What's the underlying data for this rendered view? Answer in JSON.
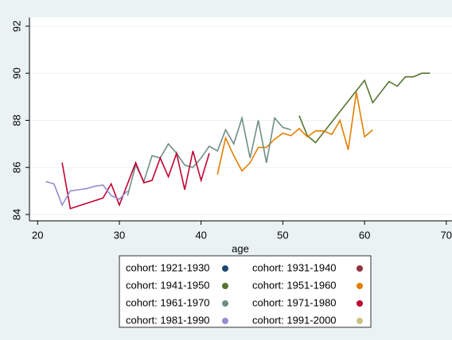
{
  "chart_data": {
    "type": "line",
    "x_label": "age",
    "xlim": [
      19,
      70.7
    ],
    "xticks": [
      20,
      30,
      40,
      50,
      60,
      70
    ],
    "ylim": [
      83.73,
      92.37
    ],
    "yticks": [
      84,
      86,
      88,
      90,
      92
    ],
    "grid": true,
    "series": [
      {
        "name": "cohort: 1921-1930",
        "color": "#1a476f",
        "x": [],
        "values": []
      },
      {
        "name": "cohort: 1931-1940",
        "color": "#90353b",
        "x": [],
        "values": []
      },
      {
        "name": "cohort: 1941-1950",
        "color": "#55752f",
        "x": [
          52,
          53,
          54,
          60,
          61,
          62,
          63,
          64,
          65,
          66,
          67,
          68
        ],
        "values": [
          88.2,
          87.35,
          87.05,
          89.7,
          88.75,
          89.2,
          89.65,
          89.45,
          89.85,
          89.85,
          90.0,
          90.0
        ]
      },
      {
        "name": "cohort: 1951-1960",
        "color": "#e37e00",
        "x": [
          42,
          43,
          44,
          45,
          46,
          47,
          48,
          49,
          50,
          51,
          52,
          53,
          54,
          55,
          56,
          57,
          58,
          59,
          60,
          61
        ],
        "values": [
          85.7,
          87.25,
          86.5,
          85.85,
          86.2,
          86.85,
          86.85,
          87.2,
          87.45,
          87.35,
          87.65,
          87.3,
          87.55,
          87.55,
          87.4,
          88.0,
          86.75,
          89.2,
          87.3,
          87.6
        ]
      },
      {
        "name": "cohort: 1961-1970",
        "color": "#6e8e84",
        "x": [
          31,
          32,
          33,
          34,
          35,
          36,
          37,
          38,
          39,
          40,
          41,
          42,
          43,
          44,
          45,
          46,
          47,
          48,
          49,
          50,
          51
        ],
        "values": [
          84.8,
          86.1,
          85.4,
          86.5,
          86.4,
          87.0,
          86.6,
          86.1,
          86.0,
          86.4,
          86.9,
          86.7,
          87.6,
          87.0,
          88.1,
          86.4,
          88.0,
          86.2,
          88.1,
          87.7,
          87.6
        ]
      },
      {
        "name": "cohort: 1971-1980",
        "color": "#c10534",
        "x": [
          23,
          24,
          28,
          29,
          30,
          32,
          33,
          34,
          35,
          36,
          37,
          38,
          39,
          40,
          41
        ],
        "values": [
          86.2,
          84.25,
          84.7,
          85.3,
          84.4,
          86.2,
          85.35,
          85.45,
          86.4,
          85.6,
          86.6,
          85.05,
          86.7,
          85.45,
          86.6
        ]
      },
      {
        "name": "cohort: 1981-1990",
        "color": "#938dd2",
        "x": [
          21,
          22,
          23,
          24,
          25,
          26,
          27,
          28,
          29,
          30,
          31
        ],
        "values": [
          85.4,
          85.3,
          84.4,
          85.0,
          85.05,
          85.1,
          85.2,
          85.25,
          84.8,
          84.65,
          85.0
        ]
      },
      {
        "name": "cohort: 1991-2000",
        "color": "#cac27e",
        "x": [],
        "values": []
      }
    ]
  }
}
